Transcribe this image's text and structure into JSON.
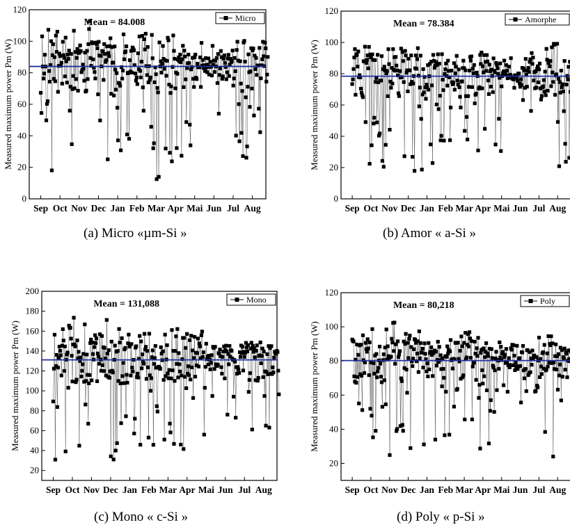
{
  "chart_data": [
    {
      "type": "scatter",
      "xlabel": "",
      "ylabel": "Measured maximum power Pm (W)",
      "categories": [
        "Sep",
        "Oct",
        "Nov",
        "Dec",
        "Jan",
        "Feb",
        "Mar",
        "Apr",
        "Mai",
        "Jun",
        "Jul",
        "Aug"
      ],
      "ylim": [
        0,
        120
      ],
      "yticks": [
        0,
        20,
        40,
        60,
        80,
        100,
        120
      ],
      "mean_label": "Mean = 84.008",
      "mean": 84.008,
      "legend": "Micro",
      "legend_position": "top-right",
      "caption": "(a) Micro «µm-Si »",
      "series": [
        {
          "name": "Micro",
          "band": [
            [
              15,
              110
            ],
            [
              20,
              112
            ],
            [
              25,
              115
            ],
            [
              25,
              110
            ],
            [
              30,
              105
            ],
            [
              25,
              110
            ],
            [
              10,
              108
            ],
            [
              25,
              105
            ],
            [
              70,
              100
            ],
            [
              50,
              95
            ],
            [
              15,
              108
            ],
            [
              25,
              100
            ]
          ]
        }
      ]
    },
    {
      "type": "scatter",
      "xlabel": "",
      "ylabel": "Measured maximum power Pm (W)",
      "categories": [
        "Sep",
        "Oct",
        "Nov",
        "Dec",
        "Jan",
        "Feb",
        "Mar",
        "Apr",
        "Mai",
        "Jun",
        "Jul",
        "Aug"
      ],
      "ylim": [
        0,
        120
      ],
      "yticks": [
        0,
        20,
        40,
        60,
        80,
        100,
        120
      ],
      "mean_label": "Mean = 78.384",
      "mean": 78.384,
      "legend": "Amorphe",
      "legend_position": "top-right",
      "caption": "(b) Amor « a-Si »",
      "series": [
        {
          "name": "Amorphe",
          "band": [
            [
              15,
              98
            ],
            [
              20,
              98
            ],
            [
              12,
              102
            ],
            [
              15,
              98
            ],
            [
              22,
              95
            ],
            [
              25,
              92
            ],
            [
              20,
              95
            ],
            [
              25,
              92
            ],
            [
              70,
              90
            ],
            [
              50,
              95
            ],
            [
              12,
              100
            ],
            [
              18,
              92
            ]
          ]
        }
      ]
    },
    {
      "type": "scatter",
      "xlabel": "",
      "ylabel": "Measured maximum power Pm (W)",
      "categories": [
        "Sep",
        "Oct",
        "Nov",
        "Dec",
        "Jan",
        "Feb",
        "Mar",
        "Apr",
        "Mai",
        "Jun",
        "Jul",
        "Aug"
      ],
      "ylim": [
        10,
        200
      ],
      "yticks": [
        20,
        40,
        60,
        80,
        100,
        120,
        140,
        160,
        180,
        200
      ],
      "mean_label": "Mean = 131,088",
      "mean": 131.088,
      "legend": "Mono",
      "legend_position": "top-right",
      "caption": "(c) Mono « c-Si »",
      "series": [
        {
          "name": "Mono",
          "band": [
            [
              30,
              170
            ],
            [
              40,
              175
            ],
            [
              25,
              175
            ],
            [
              25,
              175
            ],
            [
              45,
              160
            ],
            [
              40,
              160
            ],
            [
              35,
              165
            ],
            [
              40,
              160
            ],
            [
              90,
              145
            ],
            [
              60,
              150
            ],
            [
              22,
              150
            ],
            [
              35,
              145
            ]
          ]
        }
      ]
    },
    {
      "type": "scatter",
      "xlabel": "",
      "ylabel": "Measured maximum power Pm (W)",
      "categories": [
        "Sep",
        "Oct",
        "Nov",
        "Dec",
        "Jan",
        "Feb",
        "Mar",
        "Apr",
        "Mai",
        "Jun",
        "Jul",
        "Aug"
      ],
      "ylim": [
        10,
        120
      ],
      "yticks": [
        20,
        40,
        60,
        80,
        100,
        120
      ],
      "mean_label": "Mean = 80,218",
      "mean": 80.218,
      "legend": "Poly",
      "legend_position": "top-right",
      "caption": "(d) Poly « p-Si »",
      "series": [
        {
          "name": "Poly",
          "band": [
            [
              30,
              105
            ],
            [
              28,
              105
            ],
            [
              18,
              105
            ],
            [
              25,
              100
            ],
            [
              30,
              95
            ],
            [
              28,
              95
            ],
            [
              22,
              100
            ],
            [
              25,
              92
            ],
            [
              60,
              90
            ],
            [
              55,
              90
            ],
            [
              22,
              95
            ],
            [
              30,
              88
            ]
          ]
        }
      ]
    }
  ]
}
